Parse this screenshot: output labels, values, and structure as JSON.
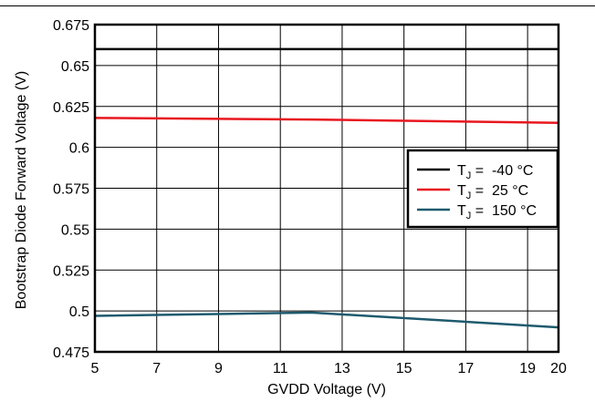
{
  "chart_data": {
    "type": "line",
    "xlabel": "GVDD Voltage (V)",
    "ylabel": "Bootstrap Diode Forward Voltage (V)",
    "xlim": [
      5,
      20
    ],
    "ylim": [
      0.475,
      0.675
    ],
    "x_ticks": [
      5,
      7,
      9,
      11,
      13,
      15,
      17,
      19,
      20
    ],
    "x_tick_labels": [
      "5",
      "7",
      "9",
      "11",
      "13",
      "15",
      "17",
      "19",
      "20"
    ],
    "y_ticks": [
      0.475,
      0.5,
      0.525,
      0.55,
      0.575,
      0.6,
      0.625,
      0.65,
      0.675
    ],
    "y_tick_labels": [
      "0.475",
      "0.5",
      "0.525",
      "0.55",
      "0.575",
      "0.6",
      "0.625",
      "0.65",
      "0.675"
    ],
    "grid": true,
    "legend_position": "middle-right",
    "series": [
      {
        "name_prefix": "T",
        "name_sub": "J",
        "name_suffix": " =  -40 °C",
        "color": "#000000",
        "x": [
          5,
          12,
          20
        ],
        "y": [
          0.66,
          0.66,
          0.66
        ]
      },
      {
        "name_prefix": "T",
        "name_sub": "J",
        "name_suffix": " =  25 °C",
        "color": "#e8171f",
        "x": [
          5,
          12,
          20
        ],
        "y": [
          0.618,
          0.617,
          0.615
        ]
      },
      {
        "name_prefix": "T",
        "name_sub": "J",
        "name_suffix": " =  150 °C",
        "color": "#1e5a6e",
        "x": [
          5,
          12,
          20
        ],
        "y": [
          0.497,
          0.499,
          0.49
        ]
      }
    ]
  }
}
